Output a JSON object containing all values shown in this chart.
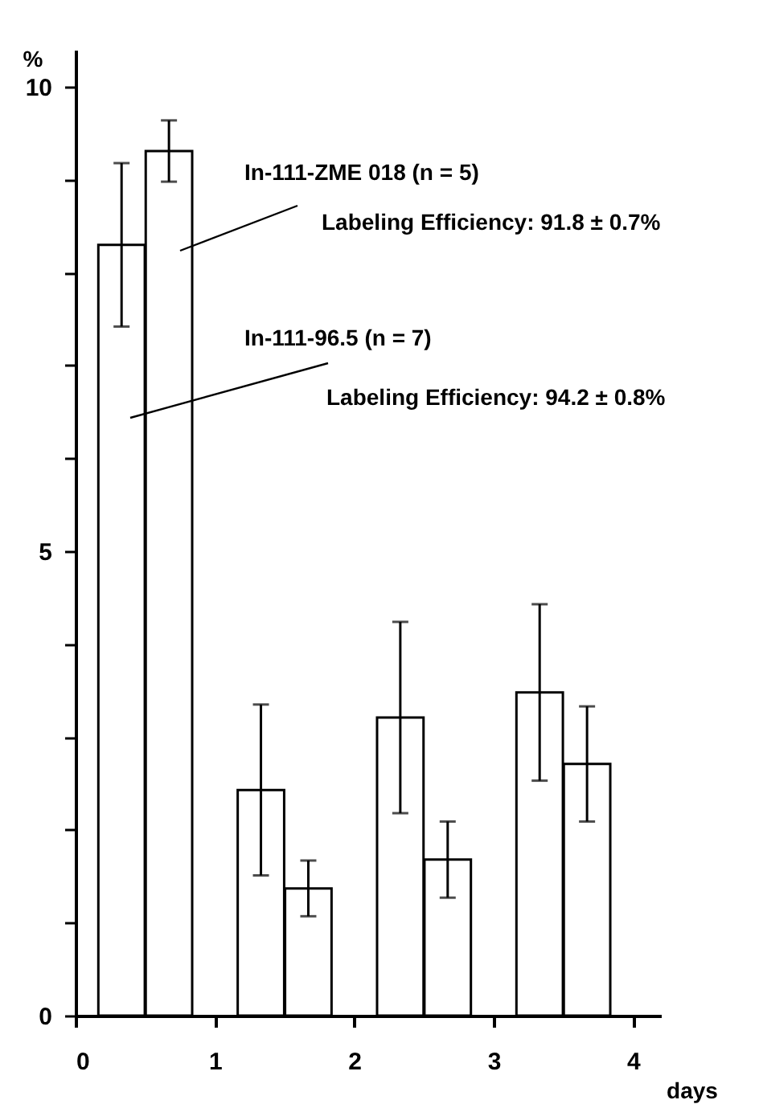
{
  "chart_data": {
    "type": "bar",
    "xlabel": "days",
    "ylabel": "%",
    "series": [
      {
        "name": "In-111-96.5 (n = 7)",
        "color": "#ffffff",
        "x": [
          0.33,
          1.33,
          2.33,
          3.33
        ],
        "values": [
          8.3,
          2.43,
          3.21,
          3.48
        ],
        "errors": [
          0.88,
          0.92,
          1.03,
          0.95
        ]
      },
      {
        "name": "In-111-ZME 018 (n = 5)",
        "color": "#ffffff",
        "x": [
          0.67,
          1.67,
          2.67,
          3.67
        ],
        "values": [
          9.31,
          1.37,
          1.68,
          2.71
        ],
        "errors": [
          0.33,
          0.3,
          0.41,
          0.62
        ]
      }
    ],
    "annotations": [
      "Labeling Efficiency: 91.8 ± 0.7%",
      "Labeling Efficiency: 94.2 ± 0.8%"
    ],
    "xlim": [
      0,
      4.2
    ],
    "xticks": [
      0,
      1,
      2,
      3,
      4
    ],
    "ylim": [
      0,
      10.4
    ],
    "yticks": [
      0,
      {
        "value": 1,
        "label": null
      },
      {
        "value": 2,
        "label": null
      },
      {
        "value": 3,
        "label": null
      },
      {
        "value": 4,
        "label": null
      },
      5,
      {
        "value": 6,
        "label": null
      },
      {
        "value": 7,
        "label": null
      },
      {
        "value": 8,
        "label": null
      },
      {
        "value": 9,
        "label": null
      },
      10
    ],
    "grid": false,
    "legend": false
  }
}
